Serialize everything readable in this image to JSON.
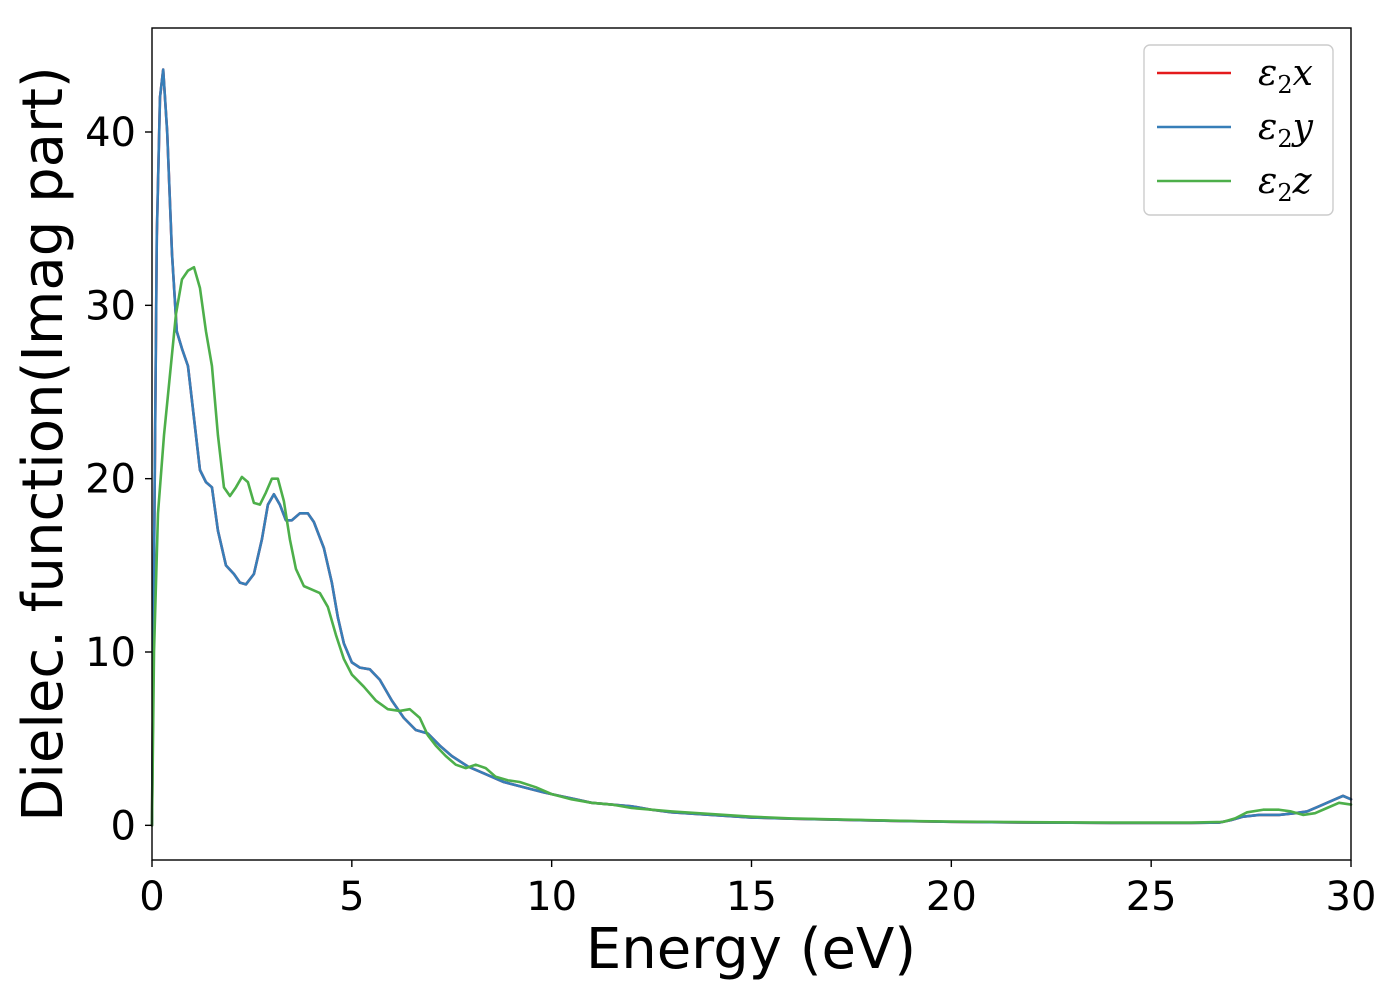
{
  "chart_data": {
    "type": "line",
    "title": "",
    "xlabel": "Energy (eV)",
    "ylabel": "Dielec. function(Imag part)",
    "xlim": [
      0,
      30
    ],
    "ylim": [
      -2,
      46
    ],
    "xticks": [
      0,
      5,
      10,
      15,
      20,
      25,
      30
    ],
    "yticks": [
      0,
      10,
      20,
      30,
      40
    ],
    "grid": false,
    "legend_position": "top-right",
    "series": [
      {
        "name": "ε2x",
        "legend": {
          "base": "ε",
          "sub": "2",
          "var": "x"
        },
        "color": "#e41a1c",
        "points": [
          [
            0,
            0
          ],
          [
            0.05,
            15
          ],
          [
            0.12,
            34
          ],
          [
            0.2,
            42
          ],
          [
            0.28,
            43.6
          ],
          [
            0.38,
            40
          ],
          [
            0.5,
            33
          ],
          [
            0.62,
            28.5
          ],
          [
            0.75,
            27.5
          ],
          [
            0.9,
            26.5
          ],
          [
            1.05,
            23.5
          ],
          [
            1.2,
            20.5
          ],
          [
            1.35,
            19.8
          ],
          [
            1.5,
            19.5
          ],
          [
            1.65,
            17
          ],
          [
            1.85,
            15
          ],
          [
            2.05,
            14.5
          ],
          [
            2.2,
            14
          ],
          [
            2.35,
            13.9
          ],
          [
            2.55,
            14.5
          ],
          [
            2.75,
            16.5
          ],
          [
            2.9,
            18.5
          ],
          [
            3.05,
            19.1
          ],
          [
            3.2,
            18.5
          ],
          [
            3.35,
            17.6
          ],
          [
            3.5,
            17.6
          ],
          [
            3.7,
            18
          ],
          [
            3.9,
            18
          ],
          [
            4.05,
            17.5
          ],
          [
            4.3,
            16
          ],
          [
            4.5,
            14
          ],
          [
            4.65,
            12
          ],
          [
            4.8,
            10.5
          ],
          [
            5.0,
            9.4
          ],
          [
            5.2,
            9.1
          ],
          [
            5.45,
            9.0
          ],
          [
            5.7,
            8.4
          ],
          [
            6.0,
            7.2
          ],
          [
            6.3,
            6.2
          ],
          [
            6.6,
            5.5
          ],
          [
            6.9,
            5.3
          ],
          [
            7.2,
            4.6
          ],
          [
            7.5,
            4.0
          ],
          [
            7.9,
            3.4
          ],
          [
            8.3,
            3.0
          ],
          [
            8.8,
            2.5
          ],
          [
            9.3,
            2.2
          ],
          [
            9.8,
            1.9
          ],
          [
            10.2,
            1.7
          ],
          [
            10.6,
            1.5
          ],
          [
            11,
            1.3
          ],
          [
            11.5,
            1.2
          ],
          [
            12,
            1.1
          ],
          [
            12.5,
            0.9
          ],
          [
            13,
            0.75
          ],
          [
            14,
            0.6
          ],
          [
            15,
            0.45
          ],
          [
            16,
            0.38
          ],
          [
            17,
            0.33
          ],
          [
            18,
            0.28
          ],
          [
            19,
            0.24
          ],
          [
            20,
            0.2
          ],
          [
            21,
            0.18
          ],
          [
            22,
            0.16
          ],
          [
            23,
            0.15
          ],
          [
            24,
            0.14
          ],
          [
            25,
            0.14
          ],
          [
            26,
            0.14
          ],
          [
            26.7,
            0.16
          ],
          [
            27,
            0.3
          ],
          [
            27.3,
            0.5
          ],
          [
            27.7,
            0.6
          ],
          [
            28.2,
            0.6
          ],
          [
            28.6,
            0.7
          ],
          [
            28.9,
            0.8
          ],
          [
            29.2,
            1.1
          ],
          [
            29.5,
            1.4
          ],
          [
            29.8,
            1.7
          ],
          [
            30,
            1.5
          ]
        ]
      },
      {
        "name": "ε2y",
        "legend": {
          "base": "ε",
          "sub": "2",
          "var": "y"
        },
        "color": "#377eb8",
        "points": [
          [
            0,
            0
          ],
          [
            0.05,
            15
          ],
          [
            0.12,
            34
          ],
          [
            0.2,
            42
          ],
          [
            0.28,
            43.6
          ],
          [
            0.38,
            40
          ],
          [
            0.5,
            33
          ],
          [
            0.62,
            28.5
          ],
          [
            0.75,
            27.5
          ],
          [
            0.9,
            26.5
          ],
          [
            1.05,
            23.5
          ],
          [
            1.2,
            20.5
          ],
          [
            1.35,
            19.8
          ],
          [
            1.5,
            19.5
          ],
          [
            1.65,
            17
          ],
          [
            1.85,
            15
          ],
          [
            2.05,
            14.5
          ],
          [
            2.2,
            14
          ],
          [
            2.35,
            13.9
          ],
          [
            2.55,
            14.5
          ],
          [
            2.75,
            16.5
          ],
          [
            2.9,
            18.5
          ],
          [
            3.05,
            19.1
          ],
          [
            3.2,
            18.5
          ],
          [
            3.35,
            17.6
          ],
          [
            3.5,
            17.6
          ],
          [
            3.7,
            18
          ],
          [
            3.9,
            18
          ],
          [
            4.05,
            17.5
          ],
          [
            4.3,
            16
          ],
          [
            4.5,
            14
          ],
          [
            4.65,
            12
          ],
          [
            4.8,
            10.5
          ],
          [
            5.0,
            9.4
          ],
          [
            5.2,
            9.1
          ],
          [
            5.45,
            9.0
          ],
          [
            5.7,
            8.4
          ],
          [
            6.0,
            7.2
          ],
          [
            6.3,
            6.2
          ],
          [
            6.6,
            5.5
          ],
          [
            6.9,
            5.3
          ],
          [
            7.2,
            4.6
          ],
          [
            7.5,
            4.0
          ],
          [
            7.9,
            3.4
          ],
          [
            8.3,
            3.0
          ],
          [
            8.8,
            2.5
          ],
          [
            9.3,
            2.2
          ],
          [
            9.8,
            1.9
          ],
          [
            10.2,
            1.7
          ],
          [
            10.6,
            1.5
          ],
          [
            11,
            1.3
          ],
          [
            11.5,
            1.2
          ],
          [
            12,
            1.1
          ],
          [
            12.5,
            0.9
          ],
          [
            13,
            0.75
          ],
          [
            14,
            0.6
          ],
          [
            15,
            0.45
          ],
          [
            16,
            0.38
          ],
          [
            17,
            0.33
          ],
          [
            18,
            0.28
          ],
          [
            19,
            0.24
          ],
          [
            20,
            0.2
          ],
          [
            21,
            0.18
          ],
          [
            22,
            0.16
          ],
          [
            23,
            0.15
          ],
          [
            24,
            0.14
          ],
          [
            25,
            0.14
          ],
          [
            26,
            0.14
          ],
          [
            26.7,
            0.16
          ],
          [
            27,
            0.3
          ],
          [
            27.3,
            0.5
          ],
          [
            27.7,
            0.6
          ],
          [
            28.2,
            0.6
          ],
          [
            28.6,
            0.7
          ],
          [
            28.9,
            0.8
          ],
          [
            29.2,
            1.1
          ],
          [
            29.5,
            1.4
          ],
          [
            29.8,
            1.7
          ],
          [
            30,
            1.5
          ]
        ]
      },
      {
        "name": "ε2z",
        "legend": {
          "base": "ε",
          "sub": "2",
          "var": "z"
        },
        "color": "#4daf4a",
        "points": [
          [
            0,
            0
          ],
          [
            0.05,
            10
          ],
          [
            0.15,
            18
          ],
          [
            0.3,
            22.5
          ],
          [
            0.45,
            26
          ],
          [
            0.6,
            29.5
          ],
          [
            0.75,
            31.5
          ],
          [
            0.9,
            32
          ],
          [
            1.05,
            32.2
          ],
          [
            1.2,
            31
          ],
          [
            1.35,
            28.5
          ],
          [
            1.5,
            26.5
          ],
          [
            1.65,
            22.5
          ],
          [
            1.8,
            19.5
          ],
          [
            1.95,
            19
          ],
          [
            2.1,
            19.5
          ],
          [
            2.25,
            20.1
          ],
          [
            2.4,
            19.8
          ],
          [
            2.55,
            18.6
          ],
          [
            2.7,
            18.5
          ],
          [
            2.85,
            19.2
          ],
          [
            3.0,
            20
          ],
          [
            3.15,
            20
          ],
          [
            3.3,
            18.7
          ],
          [
            3.45,
            16.5
          ],
          [
            3.6,
            14.8
          ],
          [
            3.8,
            13.8
          ],
          [
            4.0,
            13.6
          ],
          [
            4.2,
            13.4
          ],
          [
            4.4,
            12.6
          ],
          [
            4.6,
            11
          ],
          [
            4.8,
            9.6
          ],
          [
            5.0,
            8.7
          ],
          [
            5.3,
            8.0
          ],
          [
            5.6,
            7.2
          ],
          [
            5.9,
            6.7
          ],
          [
            6.2,
            6.6
          ],
          [
            6.45,
            6.7
          ],
          [
            6.7,
            6.2
          ],
          [
            6.9,
            5.2
          ],
          [
            7.1,
            4.6
          ],
          [
            7.35,
            4.0
          ],
          [
            7.6,
            3.5
          ],
          [
            7.85,
            3.3
          ],
          [
            8.1,
            3.5
          ],
          [
            8.35,
            3.3
          ],
          [
            8.6,
            2.8
          ],
          [
            8.9,
            2.6
          ],
          [
            9.2,
            2.5
          ],
          [
            9.6,
            2.2
          ],
          [
            10,
            1.8
          ],
          [
            10.5,
            1.5
          ],
          [
            11,
            1.3
          ],
          [
            11.5,
            1.2
          ],
          [
            12,
            1.0
          ],
          [
            12.5,
            0.9
          ],
          [
            13,
            0.8
          ],
          [
            14,
            0.65
          ],
          [
            15,
            0.5
          ],
          [
            16,
            0.4
          ],
          [
            17,
            0.35
          ],
          [
            18,
            0.3
          ],
          [
            19,
            0.25
          ],
          [
            20,
            0.22
          ],
          [
            21,
            0.2
          ],
          [
            22,
            0.18
          ],
          [
            23,
            0.17
          ],
          [
            24,
            0.16
          ],
          [
            25,
            0.16
          ],
          [
            26,
            0.16
          ],
          [
            26.8,
            0.2
          ],
          [
            27.1,
            0.4
          ],
          [
            27.4,
            0.75
          ],
          [
            27.8,
            0.9
          ],
          [
            28.2,
            0.9
          ],
          [
            28.5,
            0.8
          ],
          [
            28.8,
            0.6
          ],
          [
            29.1,
            0.7
          ],
          [
            29.4,
            1.0
          ],
          [
            29.7,
            1.3
          ],
          [
            30,
            1.2
          ]
        ]
      }
    ]
  }
}
